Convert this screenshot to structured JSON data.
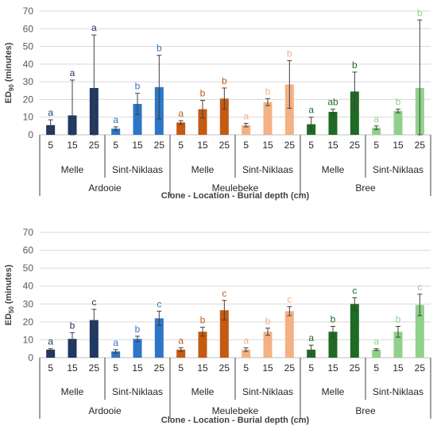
{
  "chart_data": [
    {
      "type": "bar",
      "ylabel_main": "ED",
      "ylabel_sub": "90",
      "ylabel_rest": " (minutes)",
      "xlabel": "Clone - Location - Burial depth (cm)",
      "ylim": [
        0,
        70
      ],
      "yticks": [
        0,
        10,
        20,
        30,
        40,
        50,
        60,
        70
      ],
      "grid": true,
      "depths": [
        "5",
        "15",
        "25"
      ],
      "clones": [
        {
          "name": "Ardooie",
          "locations": [
            {
              "name": "Melle",
              "color": "#1f3864",
              "values": [
                5.5,
                11,
                26.5
              ],
              "err": [
                3,
                20,
                30
              ],
              "letters": [
                "a",
                "a",
                "a"
              ],
              "letter_color": "#1f3864"
            },
            {
              "name": "Sint-Niklaas",
              "color": "#2e75c6",
              "values": [
                3.5,
                17.5,
                27
              ],
              "err": [
                1,
                6,
                18
              ],
              "letters": [
                "a",
                "b",
                "b"
              ],
              "letter_color": "#2e75c6"
            }
          ]
        },
        {
          "name": "Meulebeke",
          "locations": [
            {
              "name": "Melle",
              "color": "#c55a11",
              "values": [
                7,
                14.5,
                20.5
              ],
              "err": [
                1,
                5,
                6
              ],
              "letters": [
                "a",
                "b",
                "b"
              ],
              "letter_color": "#c55a11"
            },
            {
              "name": "Sint-Niklaas",
              "color": "#f4b183",
              "values": [
                5.5,
                18.5,
                28.5
              ],
              "err": [
                1,
                2,
                13.5
              ],
              "letters": [
                "a",
                "b",
                "b"
              ],
              "letter_color": "#f4b183"
            }
          ]
        },
        {
          "name": "Bree",
          "locations": [
            {
              "name": "Melle",
              "color": "#1e6b24",
              "values": [
                6,
                13,
                24.5
              ],
              "err": [
                4,
                1.5,
                11
              ],
              "letters": [
                "a",
                "ab",
                "b"
              ],
              "letter_color": "#1e6b24"
            },
            {
              "name": "Sint-Niklaas",
              "color": "#8fd18a",
              "values": [
                4,
                13.5,
                26.5
              ],
              "err": [
                1,
                1,
                38.5
              ],
              "letters": [
                "a",
                "b",
                "b"
              ],
              "letter_color": "#8fd18a"
            }
          ]
        }
      ]
    },
    {
      "type": "bar",
      "ylabel_main": "ED",
      "ylabel_sub": "50",
      "ylabel_rest": " (minutes)",
      "xlabel": "Clone - Location - Burial depth (cm)",
      "ylim": [
        0,
        70
      ],
      "yticks": [
        0,
        10,
        20,
        30,
        40,
        50,
        60,
        70
      ],
      "grid": true,
      "depths": [
        "5",
        "15",
        "25"
      ],
      "clones": [
        {
          "name": "Ardooie",
          "locations": [
            {
              "name": "Melle",
              "color": "#1f3864",
              "values": [
                4.5,
                10.5,
                21
              ],
              "err": [
                0.5,
                3.5,
                6
              ],
              "letters": [
                "a",
                "b",
                "c"
              ],
              "letter_color": "#1f3864"
            },
            {
              "name": "Sint-Niklaas",
              "color": "#2e75c6",
              "values": [
                3.5,
                10.5,
                22
              ],
              "err": [
                1,
                1.5,
                4
              ],
              "letters": [
                "a",
                "b",
                "c"
              ],
              "letter_color": "#2e75c6"
            }
          ]
        },
        {
          "name": "Meulebeke",
          "locations": [
            {
              "name": "Melle",
              "color": "#c55a11",
              "values": [
                4.5,
                14.5,
                26.5
              ],
              "err": [
                1,
                2.5,
                5.5
              ],
              "letters": [
                "a",
                "b",
                "c"
              ],
              "letter_color": "#c55a11"
            },
            {
              "name": "Sint-Niklaas",
              "color": "#f4b183",
              "values": [
                4.5,
                14.5,
                26
              ],
              "err": [
                1,
                2,
                2.5
              ],
              "letters": [
                "a",
                "b",
                "c"
              ],
              "letter_color": "#f4b183"
            }
          ]
        },
        {
          "name": "Bree",
          "locations": [
            {
              "name": "Melle",
              "color": "#1e6b24",
              "values": [
                4.5,
                14.5,
                30
              ],
              "err": [
                2.5,
                3,
                3.5
              ],
              "letters": [
                "a",
                "b",
                "c"
              ],
              "letter_color": "#1e6b24"
            },
            {
              "name": "Sint-Niklaas",
              "color": "#8fd18a",
              "values": [
                4.5,
                14.5,
                29.5
              ],
              "err": [
                0.5,
                3,
                6
              ],
              "letters": [
                "a",
                "b",
                "c"
              ],
              "letter_color": "#8fd18a"
            }
          ]
        }
      ]
    }
  ]
}
